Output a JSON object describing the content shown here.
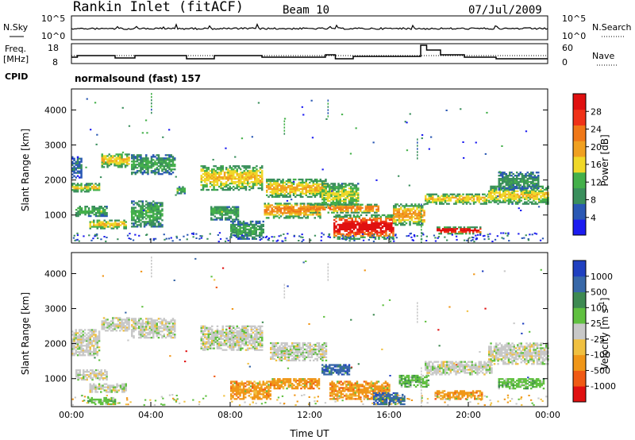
{
  "header": {
    "title": "Rankin Inlet (fitACF)",
    "beam": "Beam 10",
    "date": "07/Jul/2009"
  },
  "top_panels": {
    "nsky_label": "N.Sky",
    "nsearch_label": "N.Search",
    "nsky_ticks": [
      "10^5",
      "10^0"
    ],
    "nsearch_ticks": [
      "10^5",
      "10^0"
    ],
    "freq_label_1": "Freq.",
    "freq_label_2": "[MHz]",
    "freq_ticks": [
      "18",
      "8"
    ],
    "nave_label": "Nave",
    "nave_ticks": [
      "60",
      "0"
    ],
    "cpid_label": "CPID",
    "cpid_value": "normalsound (fast) 157"
  },
  "colors": {
    "power": [
      "#1c1cf0",
      "#2a58b4",
      "#3a8f5c",
      "#44b04a",
      "#f0d828",
      "#f0a020",
      "#f07818",
      "#f03218",
      "#e01010"
    ],
    "velocity": [
      "#e01010",
      "#f05a14",
      "#f09618",
      "#f0c040",
      "#c8c8c8",
      "#60c040",
      "#3e8a52",
      "#3868a8",
      "#2040c0"
    ]
  },
  "chart_data": [
    {
      "type": "heatmap",
      "name": "power",
      "xlabel": "",
      "ylabel": "Slant Range [km]",
      "xlim": [
        0,
        24
      ],
      "ylim": [
        200,
        4600
      ],
      "yticks": [
        1000,
        2000,
        3000,
        4000
      ],
      "colorbar_label": "Power [dB]",
      "colorbar_ticks": [
        "4",
        "8",
        "12",
        "16",
        "20",
        "24",
        "28"
      ],
      "clim": [
        0,
        30
      ],
      "regions": [
        {
          "t0": 0.0,
          "t1": 1.4,
          "r0": 1650,
          "r1": 1900,
          "level": 13
        },
        {
          "t0": 0.0,
          "t1": 0.5,
          "r0": 2050,
          "r1": 2650,
          "level": 5
        },
        {
          "t0": 0.9,
          "t1": 2.7,
          "r0": 600,
          "r1": 850,
          "level": 14
        },
        {
          "t0": 0.2,
          "t1": 1.8,
          "r0": 950,
          "r1": 1250,
          "level": 9
        },
        {
          "t0": 1.5,
          "t1": 2.9,
          "r0": 2350,
          "r1": 2750,
          "level": 14
        },
        {
          "t0": 3.0,
          "t1": 5.2,
          "r0": 2150,
          "r1": 2700,
          "level": 8
        },
        {
          "t0": 3.0,
          "t1": 4.6,
          "r0": 650,
          "r1": 1400,
          "level": 9
        },
        {
          "t0": 5.3,
          "t1": 5.7,
          "r0": 1600,
          "r1": 1800,
          "level": 10
        },
        {
          "t0": 6.5,
          "t1": 9.6,
          "r0": 1700,
          "r1": 2400,
          "level": 14
        },
        {
          "t0": 7.0,
          "t1": 8.4,
          "r0": 850,
          "r1": 1250,
          "level": 9
        },
        {
          "t0": 8.0,
          "t1": 9.7,
          "r0": 300,
          "r1": 800,
          "level": 8
        },
        {
          "t0": 9.8,
          "t1": 12.8,
          "r0": 1500,
          "r1": 2000,
          "level": 15
        },
        {
          "t0": 9.7,
          "t1": 12.5,
          "r0": 900,
          "r1": 1350,
          "level": 18
        },
        {
          "t0": 12.6,
          "t1": 14.4,
          "r0": 1200,
          "r1": 1900,
          "level": 12
        },
        {
          "t0": 13.2,
          "t1": 16.2,
          "r0": 300,
          "r1": 1000,
          "level": 26
        },
        {
          "t0": 16.2,
          "t1": 17.8,
          "r0": 700,
          "r1": 1300,
          "level": 16
        },
        {
          "t0": 17.8,
          "t1": 21.0,
          "r0": 1300,
          "r1": 1600,
          "level": 14
        },
        {
          "t0": 18.4,
          "t1": 20.6,
          "r0": 450,
          "r1": 650,
          "level": 27
        },
        {
          "t0": 21.0,
          "t1": 24.0,
          "r0": 1300,
          "r1": 1800,
          "level": 13
        },
        {
          "t0": 21.5,
          "t1": 23.5,
          "r0": 1700,
          "r1": 2200,
          "level": 7
        },
        {
          "t0": 12.0,
          "t1": 15.5,
          "r0": 1050,
          "r1": 1300,
          "level": 19
        }
      ]
    },
    {
      "type": "heatmap",
      "name": "velocity",
      "xlabel": "Time UT",
      "ylabel": "Slant Range [km]",
      "xticks": [
        "00:00",
        "04:00",
        "08:00",
        "12:00",
        "16:00",
        "20:00",
        "00:00"
      ],
      "xlim": [
        0,
        24
      ],
      "ylim": [
        200,
        4600
      ],
      "yticks": [
        1000,
        2000,
        3000,
        4000
      ],
      "colorbar_label": "Velocity [m s^-1]",
      "colorbar_ticks": [
        "-1000",
        "-500",
        "-100",
        "-25",
        "25",
        "100",
        "500",
        "1000"
      ],
      "regions": [
        {
          "t0": 0.0,
          "t1": 1.4,
          "r0": 1650,
          "r1": 2400,
          "cls": 4
        },
        {
          "t0": 0.9,
          "t1": 2.7,
          "r0": 600,
          "r1": 850,
          "cls": 4
        },
        {
          "t0": 0.2,
          "t1": 1.8,
          "r0": 950,
          "r1": 1250,
          "cls": 4
        },
        {
          "t0": 1.5,
          "t1": 2.9,
          "r0": 2350,
          "r1": 2750,
          "cls": 4
        },
        {
          "t0": 3.0,
          "t1": 5.2,
          "r0": 2150,
          "r1": 2700,
          "cls": 4
        },
        {
          "t0": 0.8,
          "t1": 2.2,
          "r0": 250,
          "r1": 450,
          "cls": 5
        },
        {
          "t0": 6.5,
          "t1": 9.6,
          "r0": 1800,
          "r1": 2500,
          "cls": 4
        },
        {
          "t0": 8.0,
          "t1": 10.0,
          "r0": 400,
          "r1": 900,
          "cls": 2
        },
        {
          "t0": 10.0,
          "t1": 12.8,
          "r0": 1500,
          "r1": 2000,
          "cls": 4
        },
        {
          "t0": 10.0,
          "t1": 12.5,
          "r0": 700,
          "r1": 1000,
          "cls": 2
        },
        {
          "t0": 12.6,
          "t1": 14.0,
          "r0": 1100,
          "r1": 1400,
          "cls": 7
        },
        {
          "t0": 13.0,
          "t1": 16.0,
          "r0": 400,
          "r1": 900,
          "cls": 2
        },
        {
          "t0": 15.2,
          "t1": 16.8,
          "r0": 250,
          "r1": 600,
          "cls": 7
        },
        {
          "t0": 16.5,
          "t1": 18.0,
          "r0": 750,
          "r1": 1100,
          "cls": 5
        },
        {
          "t0": 17.8,
          "t1": 21.2,
          "r0": 1100,
          "r1": 1500,
          "cls": 4
        },
        {
          "t0": 18.3,
          "t1": 20.7,
          "r0": 400,
          "r1": 650,
          "cls": 2
        },
        {
          "t0": 21.0,
          "t1": 24.0,
          "r0": 1400,
          "r1": 2000,
          "cls": 4
        },
        {
          "t0": 21.5,
          "t1": 23.8,
          "r0": 700,
          "r1": 1000,
          "cls": 5
        }
      ]
    }
  ]
}
